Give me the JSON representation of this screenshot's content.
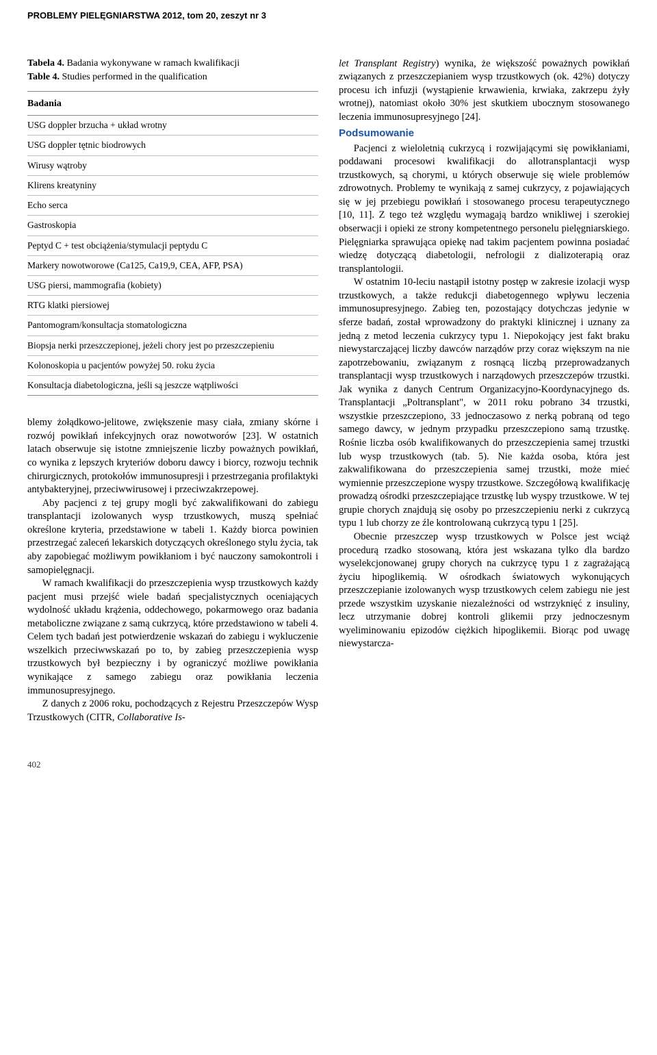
{
  "header": {
    "journal": "PROBLEMY PIELĘGNIARSTWA 2012, tom 20, zeszyt nr 3"
  },
  "table4": {
    "title_pl_bold": "Tabela 4.",
    "title_pl_rest": " Badania wykonywane w ramach kwalifikacji",
    "title_en_bold": "Table 4.",
    "title_en_rest": " Studies performed in the qualification",
    "header": "Badania",
    "rows": [
      "USG doppler brzucha + układ wrotny",
      "USG doppler tętnic biodrowych",
      "Wirusy wątroby",
      "Klirens kreatyniny",
      "Echo serca",
      "Gastroskopia",
      "Peptyd C + test obciążenia/stymulacji peptydu C",
      "Markery nowotworowe (Ca125, Ca19,9, CEA, AFP, PSA)",
      "USG piersi, mammografia (kobiety)",
      "RTG klatki piersiowej",
      "Pantomogram/konsultacja stomatologiczna",
      "Biopsja nerki przeszczepionej, jeżeli chory jest po przeszczepieniu",
      "Kolonoskopia u pacjentów powyżej 50. roku życia",
      "Konsultacja diabetologiczna, jeśli są jeszcze wątpliwości"
    ]
  },
  "left_body": {
    "p1": "blemy żołądkowo-jelitowe, zwiększenie masy ciała, zmiany skórne i rozwój powikłań infekcyjnych oraz nowotworów [23]. W ostatnich latach obserwuje się istotne zmniejszenie liczby poważnych powikłań, co wynika z lepszych kryteriów doboru dawcy i biorcy, rozwoju technik chirurgicznych, protokołów immunosupresji i przestrzegania profilaktyki antybakteryjnej, przeciwwirusowej i przeciwzakrzepowej.",
    "p2": "Aby pacjenci z tej grupy mogli być zakwalifikowani do zabiegu transplantacji izolowanych wysp trzustkowych, muszą spełniać określone kryteria, przedstawione w tabeli 1. Każdy biorca powinien przestrzegać zaleceń lekarskich dotyczących określonego stylu życia, tak aby zapobiegać możliwym powikłaniom i być nauczony samokontroli i samopielęgnacji.",
    "p3": "W ramach kwalifikacji do przeszczepienia wysp trzustkowych każdy pacjent musi przejść wiele badań specjalistycznych oceniających wydolność układu krążenia, oddechowego, pokarmowego oraz badania metaboliczne związane z samą cukrzycą, które przedstawiono w tabeli 4. Celem tych badań jest potwierdzenie wskazań do zabiegu i wykluczenie wszelkich przeciwwskazań po to, by zabieg przeszczepienia wysp trzustkowych był bezpieczny i by ograniczyć możliwe powikłania wynikające z samego zabiegu oraz powikłania leczenia immunosupresyjnego.",
    "p4_prefix": "Z danych z 2006 roku, pochodzących z Rejestru Przeszczepów Wysp Trzustkowych (CITR, ",
    "p4_italic": "Collaborative Is-"
  },
  "right_body": {
    "p1_italic": "let Transplant Registry",
    "p1_rest": ") wynika, że większość poważnych powikłań związanych z przeszczepianiem wysp trzustkowych (ok. 42%) dotyczy procesu ich infuzji (wystąpienie krwawienia, krwiaka, zakrzepu żyły wrotnej), natomiast około 30% jest skutkiem ubocznym stosowanego leczenia immunosupresyjnego [24].",
    "heading": "Podsumowanie",
    "p2": "Pacjenci z wieloletnią cukrzycą i rozwijającymi się powikłaniami, poddawani procesowi kwalifikacji do allotransplantacji wysp trzustkowych, są chorymi, u których obserwuje się wiele problemów zdrowotnych. Problemy te wynikają z samej cukrzycy, z pojawiających się w jej przebiegu powikłań i stosowanego procesu terapeutycznego [10, 11]. Z tego też względu wymagają bardzo wnikliwej i szerokiej obserwacji i opieki ze strony kompetentnego personelu pielęgniarskiego. Pielęgniarka sprawująca opiekę nad takim pacjentem powinna posiadać wiedzę dotyczącą diabetologii, nefrologii z dializoterapią oraz transplantologii.",
    "p3": "W ostatnim 10-leciu nastąpił istotny postęp w zakresie izolacji wysp trzustkowych, a także redukcji diabetogennego wpływu leczenia immunosupresyjnego. Zabieg ten, pozostający dotychczas jedynie w sferze badań, został wprowadzony do praktyki klinicznej i uznany za jedną z metod leczenia cukrzycy typu 1. Niepokojący jest fakt braku niewystarczającej liczby dawców narządów przy coraz większym na nie zapotrzebowaniu, związanym z rosnącą liczbą przeprowadzanych transplantacji wysp trzustkowych i narządowych przeszczepów trzustki. Jak wynika z danych Centrum Organizacyjno-Koordynacyjnego ds. Transplantacji „Poltransplant\", w 2011 roku pobrano 34 trzustki, wszystkie przeszczepiono, 33 jednoczasowo z nerką pobraną od tego samego dawcy, w jednym przypadku przeszczepiono samą trzustkę. Rośnie liczba osób kwalifikowanych do przeszczepienia samej trzustki lub wysp trzustkowych (tab. 5). Nie każda osoba, która jest zakwalifikowana do przeszczepienia samej trzustki, może mieć wymiennie przeszczepione wyspy trzustkowe. Szczegółową kwalifikację prowadzą ośrodki przeszczepiające trzustkę lub wyspy trzustkowe. W tej grupie chorych znajdują się osoby po przeszczepieniu nerki z cukrzycą typu 1 lub chorzy ze źle kontrolowaną cukrzycą typu 1 [25].",
    "p4": "Obecnie przeszczep wysp trzustkowych w Polsce jest wciąż procedurą rzadko stosowaną, która jest wskazana tylko dla bardzo wyselekcjonowanej grupy chorych na cukrzycę typu 1 z zagrażającą życiu hipoglikemią. W ośrodkach światowych wykonujących przeszczepianie izolowanych wysp trzustkowych celem zabiegu nie jest przede wszystkim uzyskanie niezależności od wstrzyknięć z insuliny, lecz utrzymanie dobrej kontroli glikemii przy jednoczesnym wyeliminowaniu epizodów ciężkich hipoglikemii. Biorąc pod uwagę niewystarcza-"
  },
  "page_number": "402"
}
